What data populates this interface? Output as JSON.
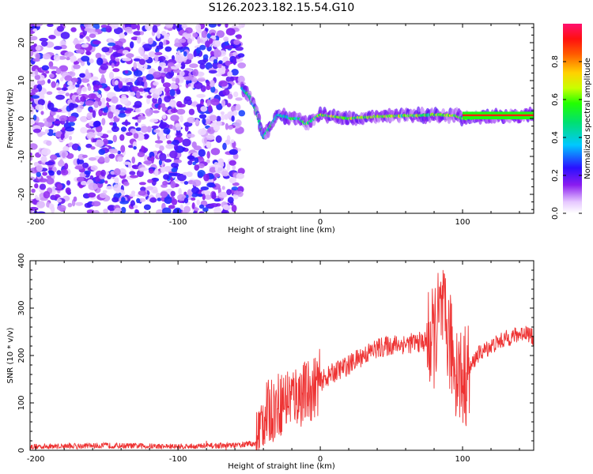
{
  "figure_title": "S126.2023.182.15.54.G10",
  "chart_data": [
    {
      "type": "heatmap",
      "title": "",
      "xlabel": "Height of straight line (km)",
      "ylabel": "Frequency (Hz)",
      "xlim": [
        -204,
        150
      ],
      "ylim": [
        -25,
        25
      ],
      "xticks": [
        -200,
        -100,
        0,
        100
      ],
      "yticks": [
        -20,
        -10,
        0,
        10,
        20
      ],
      "noise_region_x": [
        -204,
        -55
      ],
      "signal_ridge": {
        "x": [
          -55,
          -50,
          -45,
          -40,
          -30,
          -20,
          -15,
          -10,
          0,
          20,
          40,
          60,
          70,
          80,
          90,
          95,
          100,
          150
        ],
        "y": [
          8,
          6,
          2,
          -5,
          1,
          0,
          0,
          -1.5,
          1,
          0,
          0.5,
          0.8,
          0.8,
          1,
          0.8,
          0.8,
          0,
          1
        ]
      },
      "colorbar": {
        "label": "Normalized spectral amplitude",
        "range": [
          0.0,
          1.0
        ],
        "ticks": [
          "0.0",
          "0.2",
          "0.4",
          "0.6",
          "0.8"
        ],
        "colormap": "rainbow (white–violet–blue–cyan–green–yellow–red–pink)"
      }
    },
    {
      "type": "line",
      "title": "",
      "xlabel": "Height of straight line (km)",
      "ylabel": "SNR (10 * v/v)",
      "xlim": [
        -204,
        150
      ],
      "ylim": [
        0,
        400
      ],
      "xticks": [
        -200,
        -100,
        0,
        100
      ],
      "yticks": [
        0,
        100,
        200,
        300,
        400
      ],
      "series": [
        {
          "name": "SNR",
          "color": "#ee3333",
          "x": [
            -204,
            -150,
            -100,
            -60,
            -45,
            -40,
            -30,
            -20,
            -10,
            0,
            10,
            20,
            30,
            40,
            50,
            60,
            70,
            78,
            80,
            85,
            90,
            95,
            100,
            105,
            110,
            120,
            130,
            140,
            145,
            150
          ],
          "y": [
            8,
            10,
            8,
            10,
            15,
            70,
            95,
            115,
            120,
            145,
            165,
            180,
            200,
            215,
            222,
            225,
            228,
            230,
            240,
            290,
            240,
            180,
            150,
            170,
            200,
            220,
            235,
            245,
            250,
            235
          ]
        }
      ]
    }
  ]
}
